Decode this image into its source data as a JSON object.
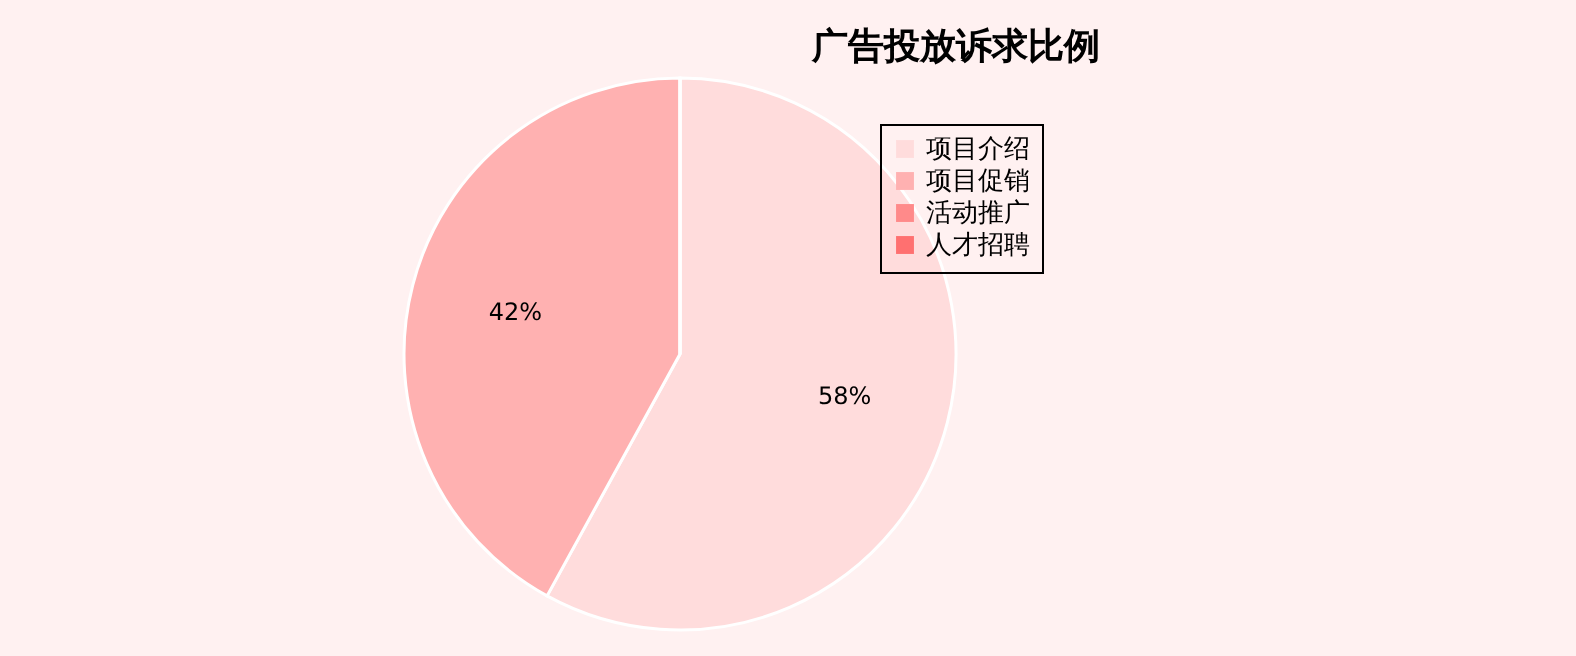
{
  "chart_data": {
    "type": "pie",
    "title": "广告投放诉求比例",
    "categories": [
      "项目介绍",
      "项目促销",
      "活动推广",
      "人才招聘"
    ],
    "values": [
      58,
      42,
      0,
      0
    ],
    "colors": [
      "#ffdcdc",
      "#ffb1b1",
      "#ff8a8a",
      "#ff7070"
    ],
    "value_labels": [
      "58%",
      "42%",
      null,
      null
    ],
    "legend": "top right"
  }
}
